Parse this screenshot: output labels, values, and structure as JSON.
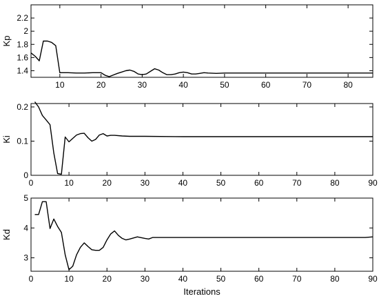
{
  "chart_data": [
    {
      "type": "line",
      "title": "",
      "xlabel": "",
      "ylabel": "Kp",
      "xlim": [
        3,
        86
      ],
      "ylim": [
        1.3,
        2.4
      ],
      "xticks": [
        10,
        20,
        30,
        40,
        50,
        60,
        70,
        80
      ],
      "yticks": [
        1.4,
        1.6,
        1.8,
        2.0,
        2.2
      ],
      "ytick_labels": [
        "1.4",
        "1.6",
        "1.8",
        "2",
        "2.2"
      ],
      "grid": false,
      "series": [
        {
          "x": [
            3,
            4,
            5,
            6,
            7,
            8,
            9,
            10,
            12,
            14,
            16,
            18,
            20,
            21,
            22,
            24,
            25,
            26,
            27,
            28,
            29,
            30,
            31,
            32,
            33,
            34,
            35,
            36,
            37,
            38,
            39,
            40,
            41,
            42,
            43,
            44,
            45,
            46,
            48,
            50,
            55,
            60,
            70,
            80,
            86
          ],
          "values": [
            1.67,
            1.62,
            1.55,
            1.85,
            1.85,
            1.83,
            1.78,
            1.37,
            1.37,
            1.365,
            1.365,
            1.37,
            1.37,
            1.33,
            1.31,
            1.36,
            1.38,
            1.4,
            1.41,
            1.39,
            1.35,
            1.34,
            1.35,
            1.39,
            1.43,
            1.41,
            1.37,
            1.34,
            1.34,
            1.35,
            1.37,
            1.38,
            1.37,
            1.35,
            1.35,
            1.36,
            1.37,
            1.365,
            1.36,
            1.365,
            1.365,
            1.365,
            1.365,
            1.365,
            1.365
          ],
          "color": "#000000"
        }
      ]
    },
    {
      "type": "line",
      "title": "",
      "xlabel": "",
      "ylabel": "Ki",
      "xlim": [
        0,
        90
      ],
      "ylim": [
        0,
        0.21
      ],
      "xticks": [
        0,
        10,
        20,
        30,
        40,
        50,
        60,
        70,
        80,
        90
      ],
      "yticks": [
        0,
        0.1,
        0.2
      ],
      "ytick_labels": [
        "0",
        "0.1",
        "0.2"
      ],
      "grid": false,
      "series": [
        {
          "x": [
            1,
            2,
            3,
            4,
            5,
            6,
            7,
            8,
            9,
            10,
            11,
            12,
            13,
            14,
            15,
            16,
            17,
            18,
            19,
            20,
            21,
            22,
            24,
            26,
            30,
            40,
            50,
            60,
            70,
            80,
            90
          ],
          "values": [
            0.215,
            0.2,
            0.175,
            0.162,
            0.148,
            0.065,
            0.005,
            0.003,
            0.112,
            0.098,
            0.108,
            0.118,
            0.122,
            0.123,
            0.11,
            0.1,
            0.105,
            0.118,
            0.122,
            0.115,
            0.117,
            0.117,
            0.115,
            0.114,
            0.114,
            0.113,
            0.113,
            0.113,
            0.113,
            0.113,
            0.113
          ],
          "color": "#000000"
        }
      ]
    },
    {
      "type": "line",
      "title": "",
      "xlabel": "Iterations",
      "ylabel": "Kd",
      "xlim": [
        0,
        90
      ],
      "ylim": [
        2.55,
        5
      ],
      "xticks": [
        0,
        10,
        20,
        30,
        40,
        50,
        60,
        70,
        80,
        90
      ],
      "yticks": [
        3,
        4,
        5
      ],
      "ytick_labels": [
        "3",
        "4",
        "5"
      ],
      "grid": false,
      "series": [
        {
          "x": [
            1,
            2,
            3,
            4,
            5,
            6,
            7,
            8,
            9,
            10,
            11,
            12,
            13,
            14,
            15,
            16,
            17,
            18,
            19,
            20,
            21,
            22,
            23,
            24,
            25,
            26,
            28,
            30,
            31,
            32,
            34,
            40,
            50,
            60,
            70,
            80,
            88,
            90
          ],
          "values": [
            4.45,
            4.45,
            4.88,
            4.88,
            3.98,
            4.3,
            4.05,
            3.85,
            3.1,
            2.6,
            2.72,
            3.1,
            3.35,
            3.5,
            3.38,
            3.27,
            3.25,
            3.25,
            3.35,
            3.6,
            3.8,
            3.9,
            3.75,
            3.65,
            3.6,
            3.63,
            3.7,
            3.65,
            3.63,
            3.68,
            3.68,
            3.68,
            3.68,
            3.68,
            3.68,
            3.68,
            3.68,
            3.7
          ],
          "color": "#000000"
        }
      ]
    }
  ]
}
